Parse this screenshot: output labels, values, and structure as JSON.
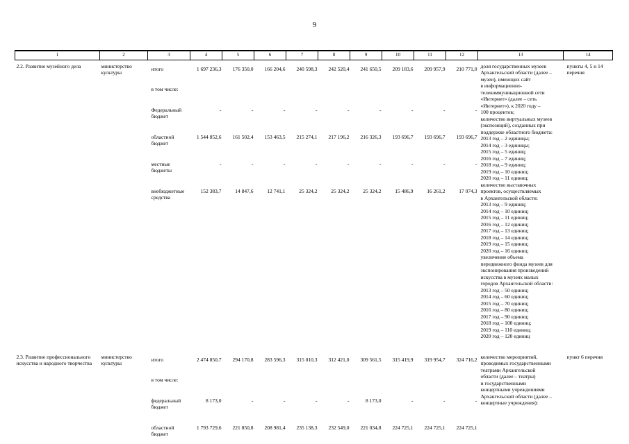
{
  "page": {
    "number": "9"
  },
  "table": {
    "header_cols": [
      "1",
      "2",
      "3",
      "4",
      "5",
      "6",
      "7",
      "8",
      "9",
      "10",
      "11",
      "12",
      "13",
      "14"
    ],
    "rows": [
      {
        "name": "2.2. Развитие музейного дела",
        "executor": "министерство культуры",
        "funding": [
          {
            "label": "итого",
            "values": [
              "1 697 236,3",
              "176 350,0",
              "166 204,6",
              "240 598,3",
              "242 520,4",
              "241 650,5",
              "209 183,6",
              "209 957,9",
              "210 771,0"
            ]
          },
          {
            "label": "в том числе:",
            "values": []
          },
          {
            "label": "Федеральный бюджет",
            "values": [
              "-",
              "-",
              "-",
              "-",
              "-",
              "-",
              "-",
              "-",
              "-"
            ]
          },
          {
            "label": "областной бюджет",
            "values": [
              "1 544 852,6",
              "161 502,4",
              "153 463,5",
              "215 274,1",
              "217 196,2",
              "216 326,3",
              "193 696,7",
              "193 696,7",
              "193 696,7"
            ]
          },
          {
            "label": "местные бюджеты",
            "values": [
              "-",
              "-",
              "-",
              "-",
              "-",
              "-",
              "-",
              "-",
              "-"
            ]
          },
          {
            "label": "внебюджетные средства",
            "values": [
              "152 383,7",
              "14 847,6",
              "12 741,1",
              "25 324,2",
              "25 324,2",
              "25 324,2",
              "15 486,9",
              "16 261,2",
              "17 074,3"
            ]
          }
        ],
        "indicators": "доля государственных музеев\nАрхангельской области (далее –\nмузеи), имеющих сайт\nв информационно-\nтелекоммуникационной сети\n«Интернет» (далее – сеть\n«Интернет»), к 2020 году –\n100 процентов;\nколичество виртуальных музеев\n(экспозиций), созданных при\nподдержке областного бюджета:\n2013 год – 2 единицы;\n2014 год – 3 единицы;\n2015 год – 5 единиц;\n2016 год – 7 единиц;\n2018 год – 9 единиц;\n2019 год – 10 единиц;\n2020 год – 11 единиц;\nколичество выставочных\nпроектов, осуществляемых\nв Архангельской области:\n2013 год – 9 единиц;\n2014 год – 10 единиц;\n2015 год – 11 единиц;\n2016 год – 12 единиц;\n2017 год – 13 единиц;\n2018 год – 14 единиц;\n2019 год – 15 единиц;\n2020 год – 16 единиц;\nувеличение объема\nпередвижного фонда музеев для\nэкспонирования произведений\nискусства в музеях малых\nгородов Архангельской области:\n2013 год – 50 единиц;\n2014 год – 60 единиц;\n2015 год – 70 единиц;\n2016 год – 80 единиц;\n2017 год – 90 единиц;\n2018 год – 100 единиц;\n2019 год – 110 единиц;\n2020 год – 120 единиц",
        "reference": "пункты 4, 5 и 14\nперечня"
      },
      {
        "name": "2.3. Развитие профессионального искусства и народного творчества",
        "executor": "министерство культуры",
        "funding": [
          {
            "label": "итого",
            "values": [
              "2 474 850,7",
              "294 170,8",
              "283 596,3",
              "315 010,3",
              "312 421,0",
              "309 561,5",
              "315 419,9",
              "319 954,7",
              "324 716,2"
            ]
          },
          {
            "label": "в том числе:",
            "values": []
          },
          {
            "label": "федеральный бюджет",
            "values": [
              "8 173,0",
              "-",
              "-",
              "-",
              "-",
              "8 173,0",
              "-",
              "-",
              "-"
            ]
          },
          {
            "label": "областной бюджет",
            "values": [
              "1 793 729,6",
              "221 850,8",
              "208 981,4",
              "235 138,3",
              "232 549,0",
              "221 034,8",
              "224 725,1",
              "224 725,1",
              "224 725,1"
            ]
          }
        ],
        "indicators": "количество мероприятий,\nпроводимых государственными\nтеатрами Архангельской\nобласти (далее – театры)\nи государственными\nконцертными учреждениями\nАрхангельской области (далее –\nконцертные учреждения):",
        "reference": "пункт 6 перечня"
      }
    ]
  }
}
